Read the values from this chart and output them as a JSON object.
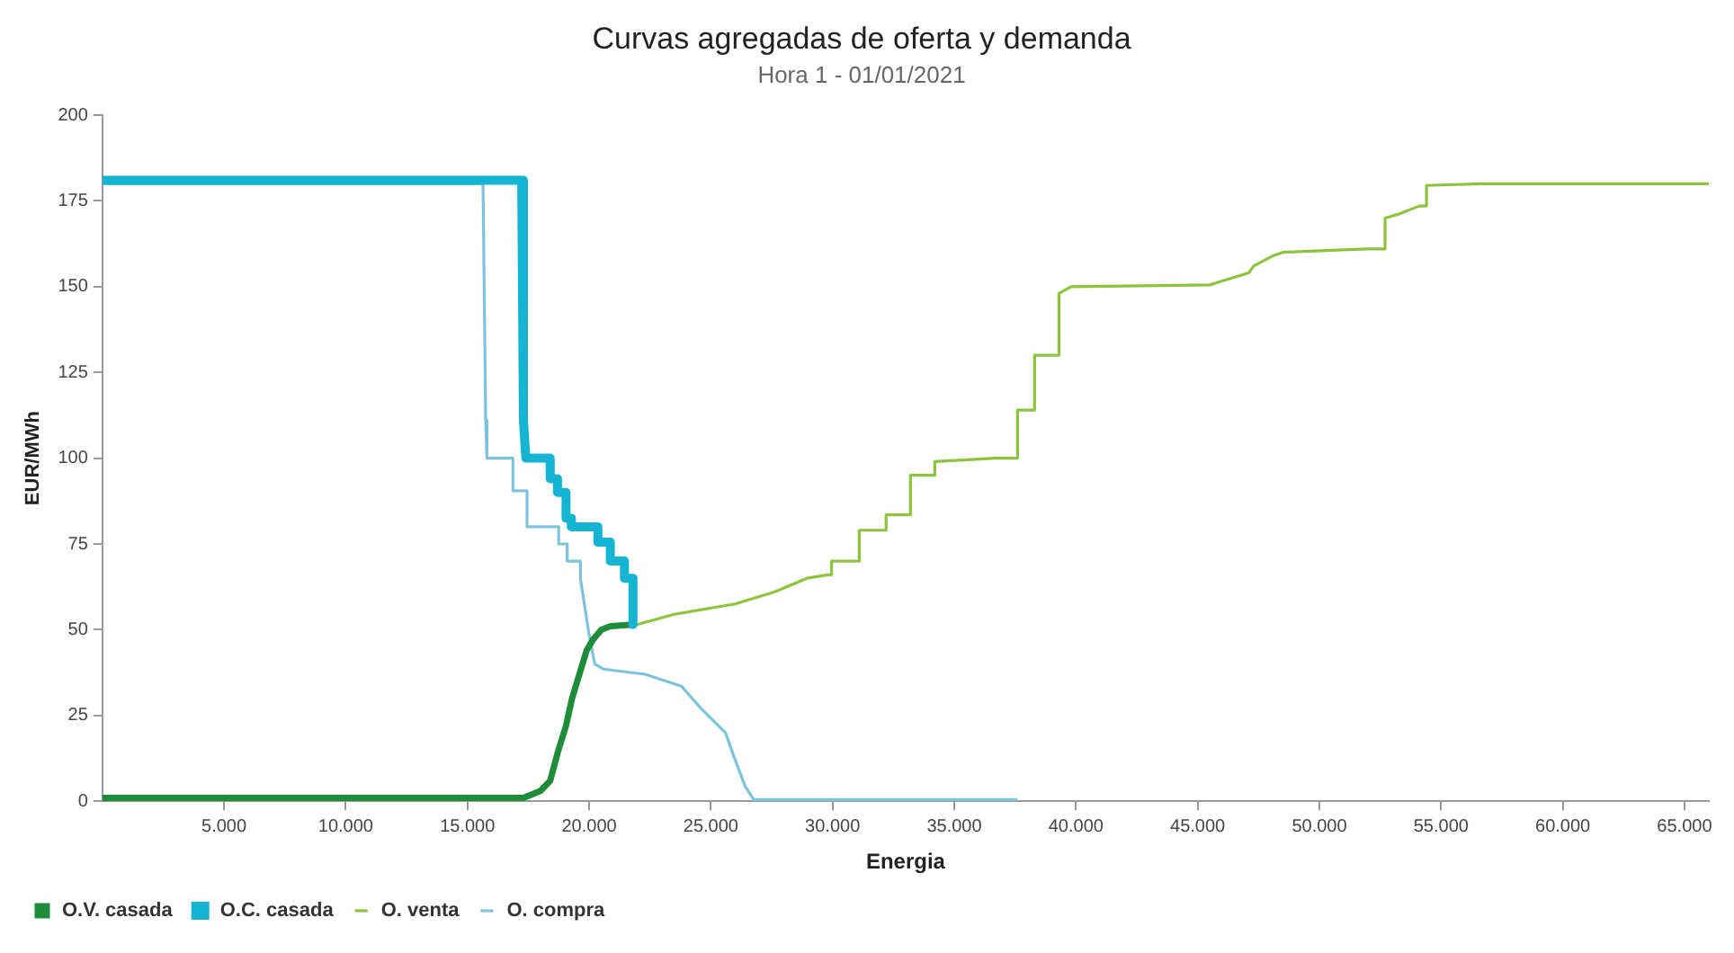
{
  "chart_data": {
    "type": "line",
    "title": "Curvas agregadas de oferta y demanda",
    "subtitle": "Hora 1 - 01/01/2021",
    "xlabel": "Energia",
    "ylabel": "EUR/MWh",
    "xlim": [
      0,
      66000
    ],
    "xticks": [
      {
        "value": 5000,
        "label": "5.000"
      },
      {
        "value": 10000,
        "label": "10.000"
      },
      {
        "value": 15000,
        "label": "15.000"
      },
      {
        "value": 20000,
        "label": "20.000"
      },
      {
        "value": 25000,
        "label": "25.000"
      },
      {
        "value": 30000,
        "label": "30.000"
      },
      {
        "value": 35000,
        "label": "35.000"
      },
      {
        "value": 40000,
        "label": "40.000"
      },
      {
        "value": 45000,
        "label": "45.000"
      },
      {
        "value": 50000,
        "label": "50.000"
      },
      {
        "value": 55000,
        "label": "55.000"
      },
      {
        "value": 60000,
        "label": "60.000"
      },
      {
        "value": 65000,
        "label": "65.000"
      }
    ],
    "ylim": [
      0,
      200
    ],
    "yticks": [
      0,
      25,
      50,
      75,
      100,
      125,
      150,
      175,
      200
    ],
    "grid": false,
    "legend": "bottom",
    "series": [
      {
        "name": "O. venta",
        "color": "#8cc43c",
        "x": [
          0,
          17300,
          18000,
          18400,
          18700,
          19050,
          19300,
          19640,
          19900,
          20150,
          20500,
          20870,
          21960,
          23500,
          26000,
          27600,
          28950,
          29800,
          29960,
          29960,
          31100,
          31100,
          32200,
          32200,
          33200,
          33200,
          34200,
          34200,
          36700,
          37600,
          37600,
          38300,
          38300,
          39300,
          39300,
          39800,
          45500,
          45950,
          47100,
          47300,
          48100,
          48500,
          51900,
          52700,
          52700,
          53200,
          54100,
          54400,
          54400,
          56700,
          66000
        ],
        "values": [
          1,
          1,
          3,
          6,
          14,
          22,
          30,
          38,
          44,
          47,
          50,
          51,
          51.5,
          54.5,
          57.5,
          61,
          65,
          66,
          66,
          70,
          70,
          79,
          79,
          83.5,
          83.5,
          95,
          95,
          99,
          100,
          100,
          114,
          114,
          130,
          130,
          148,
          150,
          150.5,
          151.5,
          154,
          156,
          159,
          160,
          161,
          161,
          170,
          171,
          173.5,
          173.5,
          179.5,
          180,
          180
        ]
      },
      {
        "name": "O. compra",
        "color": "#7cc3dc",
        "x": [
          0,
          15640,
          15750,
          15800,
          16870,
          16870,
          17450,
          17450,
          18750,
          18750,
          19100,
          19100,
          19640,
          19640,
          20000,
          20230,
          20600,
          22300,
          23800,
          24600,
          25600,
          25950,
          26400,
          26760,
          37600
        ],
        "values": [
          180,
          180,
          111,
          100,
          100,
          90.5,
          90.5,
          80,
          80,
          75,
          75,
          70,
          70,
          65,
          48.5,
          40,
          38.5,
          37,
          33.5,
          27,
          20,
          13,
          4.5,
          0.5,
          0.5
        ]
      },
      {
        "name": "O.V. casada",
        "color": "#1e8c38",
        "x": [
          0,
          17300,
          18000,
          18400,
          18700,
          19050,
          19300,
          19640,
          19900,
          20150,
          20500,
          20870,
          21800
        ],
        "values": [
          1,
          1,
          3,
          6,
          14,
          22,
          30,
          38,
          44,
          47,
          50,
          51,
          51.5
        ]
      },
      {
        "name": "O.C. casada",
        "color": "#14b4d2",
        "x": [
          0,
          17230,
          17300,
          17400,
          18400,
          18400,
          18700,
          18700,
          19050,
          19050,
          19270,
          19270,
          20360,
          20360,
          20870,
          20870,
          21450,
          21450,
          21800,
          21800
        ],
        "values": [
          181,
          181,
          111,
          100,
          100,
          94,
          94,
          90,
          90,
          82.5,
          82.5,
          80,
          80,
          75.5,
          75.5,
          70,
          70,
          65,
          65,
          51.5
        ]
      }
    ]
  }
}
